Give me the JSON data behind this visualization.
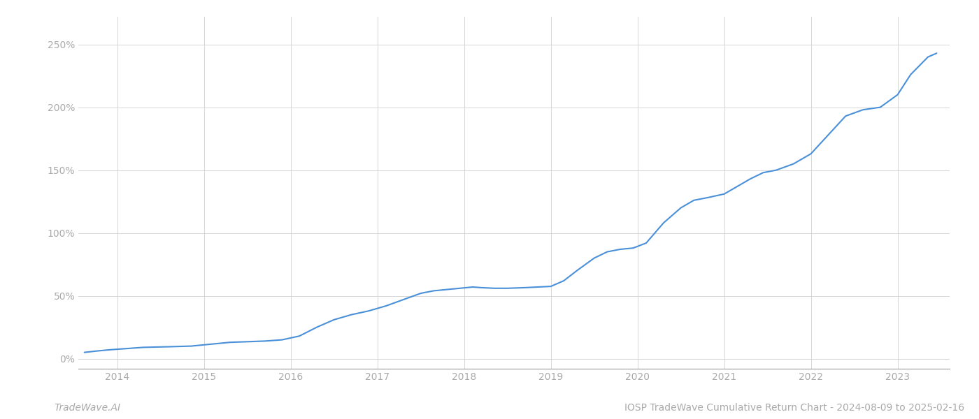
{
  "title": "IOSP TradeWave Cumulative Return Chart - 2024-08-09 to 2025-02-16",
  "watermark": "TradeWave.AI",
  "line_color": "#4a90d9",
  "background_color": "#ffffff",
  "grid_color": "#d0d0d0",
  "x_years": [
    2014,
    2015,
    2016,
    2017,
    2018,
    2019,
    2020,
    2021,
    2022,
    2023
  ],
  "y_ticks": [
    0,
    50,
    100,
    150,
    200,
    250
  ],
  "x_data": [
    2013.62,
    2013.75,
    2013.9,
    2014.1,
    2014.3,
    2014.6,
    2014.85,
    2015.0,
    2015.15,
    2015.3,
    2015.5,
    2015.7,
    2015.9,
    2016.1,
    2016.3,
    2016.5,
    2016.7,
    2016.9,
    2017.1,
    2017.3,
    2017.5,
    2017.65,
    2017.8,
    2017.95,
    2018.1,
    2018.2,
    2018.35,
    2018.5,
    2018.7,
    2018.85,
    2019.0,
    2019.15,
    2019.3,
    2019.5,
    2019.65,
    2019.8,
    2019.95,
    2020.1,
    2020.3,
    2020.5,
    2020.65,
    2020.8,
    2021.0,
    2021.15,
    2021.3,
    2021.45,
    2021.6,
    2021.8,
    2022.0,
    2022.2,
    2022.4,
    2022.6,
    2022.8,
    2023.0,
    2023.15,
    2023.35,
    2023.45
  ],
  "y_data": [
    5,
    6,
    7,
    8,
    9,
    9.5,
    10,
    11,
    12,
    13,
    13.5,
    14,
    15,
    18,
    25,
    31,
    35,
    38,
    42,
    47,
    52,
    54,
    55,
    56,
    57,
    56.5,
    56,
    56,
    56.5,
    57,
    57.5,
    62,
    70,
    80,
    85,
    87,
    88,
    92,
    108,
    120,
    126,
    128,
    131,
    137,
    143,
    148,
    150,
    155,
    163,
    178,
    193,
    198,
    200,
    210,
    226,
    240,
    243
  ],
  "xlim": [
    2013.55,
    2023.6
  ],
  "ylim": [
    -8,
    272
  ],
  "line_width": 1.5,
  "title_fontsize": 10,
  "watermark_fontsize": 10,
  "tick_fontsize": 10,
  "tick_color": "#aaaaaa",
  "spine_color": "#999999"
}
